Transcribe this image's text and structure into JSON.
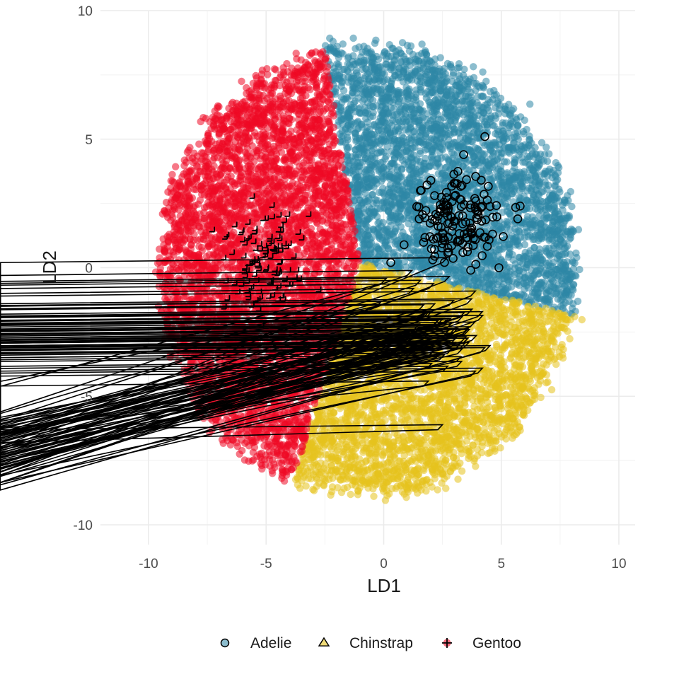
{
  "chart_data": {
    "type": "scatter",
    "title": "",
    "xlabel": "LD1",
    "ylabel": "LD2",
    "xlim": [
      -12,
      10.7
    ],
    "ylim": [
      -10.6,
      10.1
    ],
    "x_ticks": [
      -10,
      -5,
      0,
      5,
      10
    ],
    "y_ticks": [
      -10,
      -5,
      0,
      5,
      10
    ],
    "x_tick_labels": [
      "-10",
      "-5",
      "0",
      "5",
      "10"
    ],
    "y_tick_labels": [
      "-10",
      "-5",
      "0",
      "5",
      "10"
    ],
    "grid": true,
    "legend_position": "bottom",
    "background_regions": [
      {
        "name": "Adelie",
        "color": "#2E86A6",
        "description": "decision region above-right",
        "point_count_approx": 3000
      },
      {
        "name": "Chinstrap",
        "color": "#E5C21E",
        "description": "decision region below-right",
        "point_count_approx": 3000
      },
      {
        "name": "Gentoo",
        "color": "#EE0A24",
        "description": "decision region left",
        "point_count_approx": 3500
      }
    ],
    "region_boundaries": {
      "junction": [
        -1.0,
        0.2
      ],
      "gentoo_adelie": [
        [
          -1.0,
          0.2
        ],
        [
          -2.6,
          9.0
        ]
      ],
      "gentoo_chinstrap": [
        [
          -1.0,
          0.2
        ],
        [
          -3.5,
          -7.2
        ]
      ],
      "adelie_chinstrap": [
        [
          -1.0,
          0.2
        ],
        [
          7.0,
          -1.6
        ]
      ]
    },
    "series": [
      {
        "name": "Adelie",
        "marker": "circle",
        "color": "#2E86A6",
        "center": [
          3.0,
          1.9
        ],
        "spread": [
          0.9,
          0.8
        ],
        "n": 146,
        "extremes": [
          [
            0.3,
            0.2
          ],
          [
            4.3,
            5.1
          ],
          [
            5.8,
            2.4
          ],
          [
            3.4,
            4.4
          ],
          [
            5.7,
            1.9
          ],
          [
            4.9,
            0.0
          ],
          [
            3.7,
            -0.1
          ]
        ]
      },
      {
        "name": "Chinstrap",
        "marker": "triangle",
        "color": "#E5C21E",
        "center": [
          2.6,
          -2.5
        ],
        "spread": [
          0.8,
          0.8
        ],
        "n": 68,
        "extremes": [
          [
            -0.1,
            -1.5
          ],
          [
            2.5,
            -6.3
          ],
          [
            1.9,
            -4.6
          ],
          [
            4.3,
            -3.3
          ],
          [
            4.2,
            -4.1
          ],
          [
            1.2,
            -0.3
          ],
          [
            2.7,
            0.2
          ],
          [
            3.9,
            -1.1
          ],
          [
            4.2,
            -1.9
          ]
        ]
      },
      {
        "name": "Gentoo",
        "marker": "plus",
        "color": "#EE0A24",
        "center": [
          -5.0,
          0.3
        ],
        "spread": [
          0.8,
          0.9
        ],
        "n": 119,
        "extremes": [
          [
            -6.2,
            -3.1
          ],
          [
            -5.1,
            -2.3
          ],
          [
            -7.2,
            1.4
          ],
          [
            -3.1,
            2.0
          ],
          [
            -5.5,
            2.7
          ],
          [
            -4.0,
            2.0
          ],
          [
            -3.5,
            -0.5
          ],
          [
            -6.7,
            -1.6
          ]
        ]
      }
    ]
  },
  "legend": {
    "items": [
      {
        "label": "Adelie",
        "marker": "circle",
        "color": "#2E86A6"
      },
      {
        "label": "Chinstrap",
        "marker": "triangle",
        "color": "#E5C21E"
      },
      {
        "label": "Gentoo",
        "marker": "plus",
        "color": "#EE0A24"
      }
    ]
  }
}
